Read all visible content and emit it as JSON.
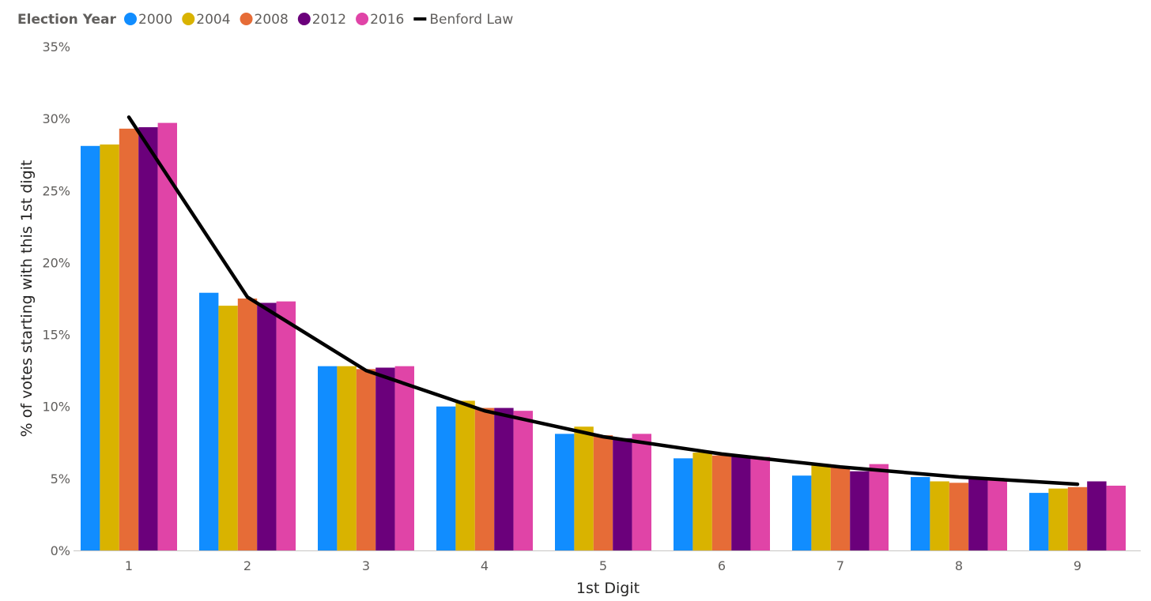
{
  "chart_data": {
    "type": "bar",
    "title": "",
    "xlabel": "1st Digit",
    "ylabel": "% of votes starting with this 1st digit",
    "legend_title": "Election Year",
    "legend_position": "top-left",
    "grid": false,
    "categories": [
      "1",
      "2",
      "3",
      "4",
      "5",
      "6",
      "7",
      "8",
      "9"
    ],
    "ylim": [
      0,
      35
    ],
    "yticks": [
      0,
      5,
      10,
      15,
      20,
      25,
      30,
      35
    ],
    "ytick_suffix": "%",
    "series": [
      {
        "name": "2000",
        "color": "#118dff",
        "values": [
          28.1,
          17.9,
          12.8,
          10.0,
          8.1,
          6.4,
          5.2,
          5.1,
          4.0
        ]
      },
      {
        "name": "2004",
        "color": "#d9b300",
        "values": [
          28.2,
          17.0,
          12.8,
          10.4,
          8.6,
          6.8,
          6.0,
          4.8,
          4.3
        ]
      },
      {
        "name": "2008",
        "color": "#e66c37",
        "values": [
          29.3,
          17.5,
          12.6,
          9.9,
          8.0,
          6.6,
          5.8,
          4.7,
          4.4
        ]
      },
      {
        "name": "2012",
        "color": "#6b007b",
        "values": [
          29.4,
          17.2,
          12.7,
          9.9,
          7.8,
          6.6,
          5.5,
          5.1,
          4.8
        ]
      },
      {
        "name": "2016",
        "color": "#e044a7",
        "values": [
          29.7,
          17.3,
          12.8,
          9.7,
          8.1,
          6.5,
          6.0,
          4.9,
          4.5
        ]
      }
    ],
    "line_series": {
      "name": "Benford Law",
      "color": "#000000",
      "values": [
        30.1,
        17.6,
        12.5,
        9.7,
        7.9,
        6.7,
        5.8,
        5.1,
        4.6
      ]
    }
  }
}
